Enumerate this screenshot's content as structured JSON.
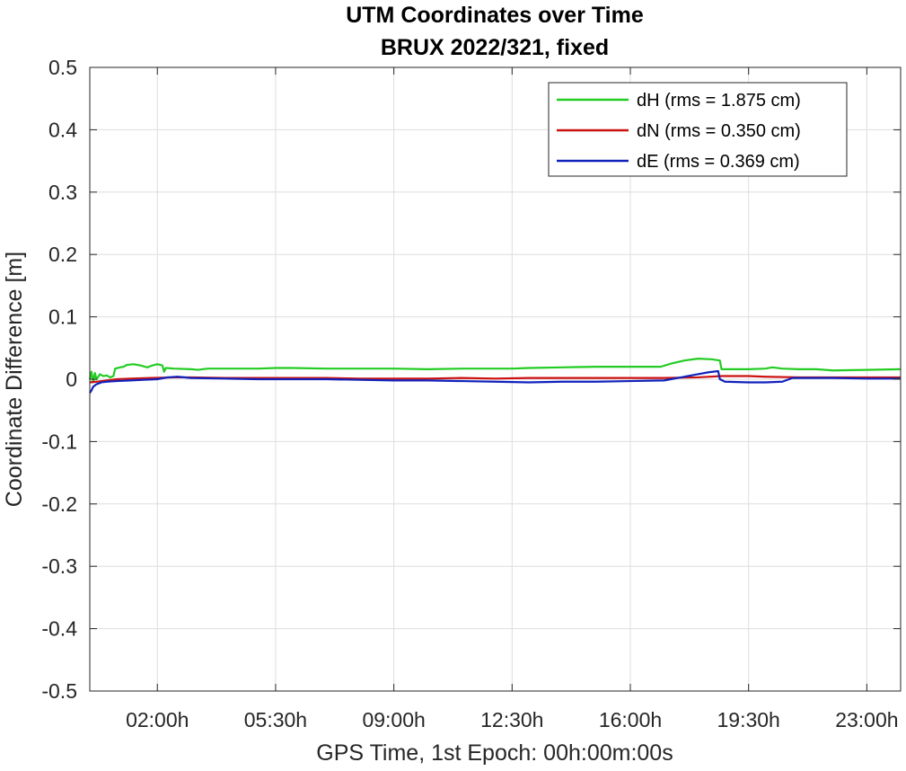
{
  "chart_data": {
    "type": "line",
    "title": "UTM Coordinates over Time",
    "subtitle": "BRUX 2022/321, fixed",
    "xlabel": "GPS Time, 1st Epoch: 00h:00m:00s",
    "ylabel": "Coordinate Difference [m]",
    "xlim_hours": [
      0,
      24
    ],
    "ylim": [
      -0.5,
      0.5
    ],
    "x_ticks_hours": [
      2,
      5.5,
      9,
      12.5,
      16,
      19.5,
      23
    ],
    "x_tick_labels": [
      "02:00h",
      "05:30h",
      "09:00h",
      "12:30h",
      "16:00h",
      "19:30h",
      "23:00h"
    ],
    "y_ticks": [
      -0.5,
      -0.4,
      -0.3,
      -0.2,
      -0.1,
      0,
      0.1,
      0.2,
      0.3,
      0.4,
      0.5
    ],
    "y_tick_labels": [
      "-0.5",
      "-0.4",
      "-0.3",
      "-0.2",
      "-0.1",
      "0",
      "0.1",
      "0.2",
      "0.3",
      "0.4",
      "0.5"
    ],
    "grid": true,
    "legend_position": "top-right",
    "series": [
      {
        "name": "dH (rms = 1.875 cm)",
        "color": "#22cc22",
        "points": [
          [
            0.0,
            0.0
          ],
          [
            0.05,
            0.012
          ],
          [
            0.1,
            -0.005
          ],
          [
            0.15,
            0.01
          ],
          [
            0.2,
            0.0
          ],
          [
            0.3,
            0.008
          ],
          [
            0.4,
            0.005
          ],
          [
            0.5,
            0.006
          ],
          [
            0.6,
            0.003
          ],
          [
            0.7,
            0.005
          ],
          [
            0.75,
            0.017
          ],
          [
            0.9,
            0.019
          ],
          [
            1.0,
            0.02
          ],
          [
            1.1,
            0.023
          ],
          [
            1.3,
            0.024
          ],
          [
            1.5,
            0.022
          ],
          [
            1.7,
            0.019
          ],
          [
            1.85,
            0.022
          ],
          [
            2.0,
            0.024
          ],
          [
            2.15,
            0.022
          ],
          [
            2.2,
            0.012
          ],
          [
            2.25,
            0.018
          ],
          [
            2.5,
            0.017
          ],
          [
            3.0,
            0.016
          ],
          [
            3.2,
            0.015
          ],
          [
            3.5,
            0.017
          ],
          [
            4.0,
            0.017
          ],
          [
            5.0,
            0.017
          ],
          [
            5.5,
            0.018
          ],
          [
            6.0,
            0.018
          ],
          [
            7.0,
            0.017
          ],
          [
            8.0,
            0.017
          ],
          [
            9.0,
            0.017
          ],
          [
            10.0,
            0.016
          ],
          [
            11.0,
            0.017
          ],
          [
            12.0,
            0.017
          ],
          [
            12.5,
            0.017
          ],
          [
            13.0,
            0.018
          ],
          [
            14.0,
            0.019
          ],
          [
            15.0,
            0.02
          ],
          [
            16.0,
            0.02
          ],
          [
            16.9,
            0.02
          ],
          [
            17.2,
            0.025
          ],
          [
            17.6,
            0.03
          ],
          [
            18.0,
            0.033
          ],
          [
            18.4,
            0.032
          ],
          [
            18.65,
            0.03
          ],
          [
            18.7,
            0.016
          ],
          [
            19.0,
            0.016
          ],
          [
            19.5,
            0.016
          ],
          [
            20.0,
            0.017
          ],
          [
            20.2,
            0.019
          ],
          [
            20.5,
            0.017
          ],
          [
            21.0,
            0.016
          ],
          [
            21.5,
            0.016
          ],
          [
            22.0,
            0.014
          ],
          [
            23.0,
            0.015
          ],
          [
            24.0,
            0.016
          ]
        ]
      },
      {
        "name": "dN (rms = 0.350 cm)",
        "color": "#cc1111",
        "points": [
          [
            0.0,
            -0.005
          ],
          [
            0.2,
            -0.004
          ],
          [
            0.5,
            -0.002
          ],
          [
            0.8,
            0.0
          ],
          [
            1.2,
            0.001
          ],
          [
            1.8,
            0.002
          ],
          [
            2.5,
            0.003
          ],
          [
            3.0,
            0.003
          ],
          [
            4.0,
            0.002
          ],
          [
            5.0,
            0.002
          ],
          [
            6.0,
            0.002
          ],
          [
            7.0,
            0.002
          ],
          [
            8.0,
            0.001
          ],
          [
            9.0,
            0.001
          ],
          [
            10.0,
            0.001
          ],
          [
            11.0,
            0.002
          ],
          [
            12.0,
            0.001
          ],
          [
            13.0,
            0.002
          ],
          [
            14.0,
            0.002
          ],
          [
            15.0,
            0.002
          ],
          [
            16.0,
            0.002
          ],
          [
            17.0,
            0.002
          ],
          [
            18.0,
            0.003
          ],
          [
            18.7,
            0.005
          ],
          [
            19.5,
            0.005
          ],
          [
            20.0,
            0.004
          ],
          [
            21.0,
            0.003
          ],
          [
            22.0,
            0.003
          ],
          [
            23.0,
            0.003
          ],
          [
            24.0,
            0.003
          ]
        ]
      },
      {
        "name": "dE (rms = 0.369 cm)",
        "color": "#1122bb",
        "points": [
          [
            0.0,
            -0.022
          ],
          [
            0.05,
            -0.018
          ],
          [
            0.1,
            -0.012
          ],
          [
            0.2,
            -0.008
          ],
          [
            0.35,
            -0.005
          ],
          [
            0.5,
            -0.004
          ],
          [
            0.8,
            -0.003
          ],
          [
            1.2,
            -0.002
          ],
          [
            1.6,
            -0.001
          ],
          [
            2.0,
            0.0
          ],
          [
            2.3,
            0.003
          ],
          [
            2.6,
            0.004
          ],
          [
            3.0,
            0.002
          ],
          [
            4.0,
            0.001
          ],
          [
            5.0,
            0.0
          ],
          [
            6.0,
            0.0
          ],
          [
            7.0,
            0.0
          ],
          [
            8.0,
            -0.001
          ],
          [
            9.0,
            -0.002
          ],
          [
            10.0,
            -0.002
          ],
          [
            11.0,
            -0.003
          ],
          [
            12.0,
            -0.004
          ],
          [
            13.0,
            -0.005
          ],
          [
            14.0,
            -0.004
          ],
          [
            15.0,
            -0.004
          ],
          [
            16.0,
            -0.003
          ],
          [
            17.0,
            -0.002
          ],
          [
            17.5,
            0.003
          ],
          [
            18.0,
            0.008
          ],
          [
            18.3,
            0.011
          ],
          [
            18.6,
            0.013
          ],
          [
            18.65,
            0.0
          ],
          [
            18.8,
            -0.004
          ],
          [
            19.5,
            -0.005
          ],
          [
            20.0,
            -0.005
          ],
          [
            20.5,
            -0.004
          ],
          [
            20.8,
            0.002
          ],
          [
            21.5,
            0.002
          ],
          [
            22.0,
            0.002
          ],
          [
            23.0,
            0.001
          ],
          [
            24.0,
            0.001
          ]
        ]
      }
    ]
  }
}
